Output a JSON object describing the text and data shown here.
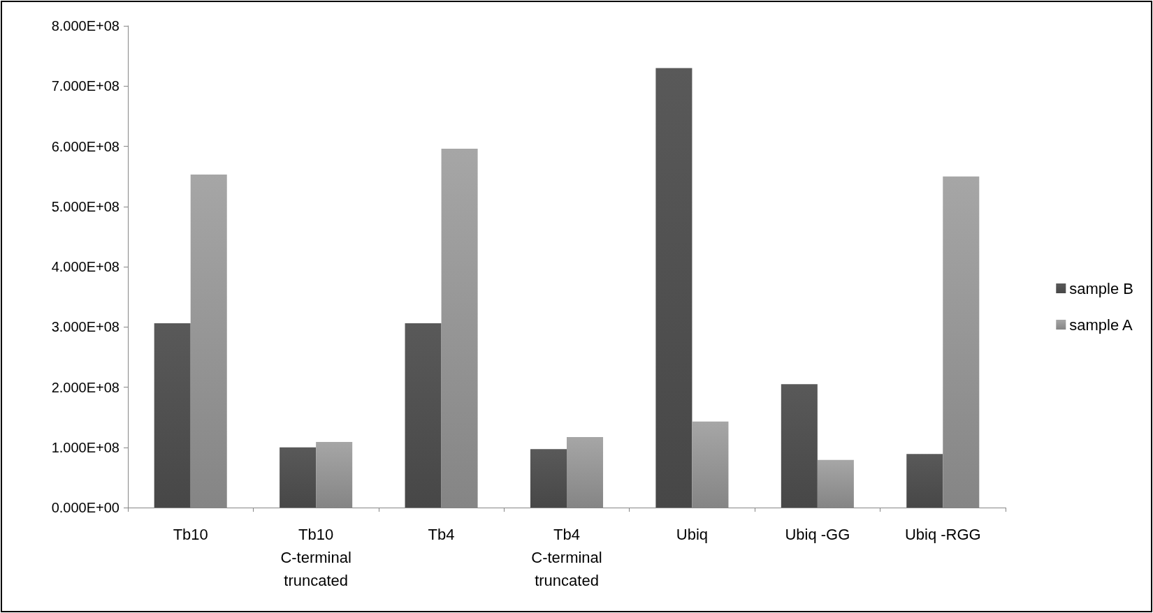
{
  "chart_data": {
    "type": "bar",
    "categories": [
      "Tb10",
      "Tb10\nC-terminal\ntruncated",
      "Tb4",
      "Tb4\nC-terminal\ntruncated",
      "Ubiq",
      "Ubiq -GG",
      "Ubiq -RGG"
    ],
    "series": [
      {
        "name": "sample B",
        "color": "#595959",
        "values": [
          306000000,
          100000000,
          306000000,
          97000000,
          730000000,
          205000000,
          89000000
        ]
      },
      {
        "name": "sample A",
        "color": "#a6a6a6",
        "values": [
          553000000,
          109000000,
          596000000,
          117000000,
          143000000,
          79000000,
          550000000
        ]
      }
    ],
    "ylim": [
      0,
      800000000
    ],
    "yticks": [
      {
        "value": 0,
        "label": "0.000E+00"
      },
      {
        "value": 100000000,
        "label": "1.000E+08"
      },
      {
        "value": 200000000,
        "label": "2.000E+08"
      },
      {
        "value": 300000000,
        "label": "3.000E+08"
      },
      {
        "value": 400000000,
        "label": "4.000E+08"
      },
      {
        "value": 500000000,
        "label": "5.000E+08"
      },
      {
        "value": 600000000,
        "label": "6.000E+08"
      },
      {
        "value": 700000000,
        "label": "7.000E+08"
      },
      {
        "value": 800000000,
        "label": "8.000E+08"
      }
    ],
    "grid": false,
    "legend": "right"
  }
}
